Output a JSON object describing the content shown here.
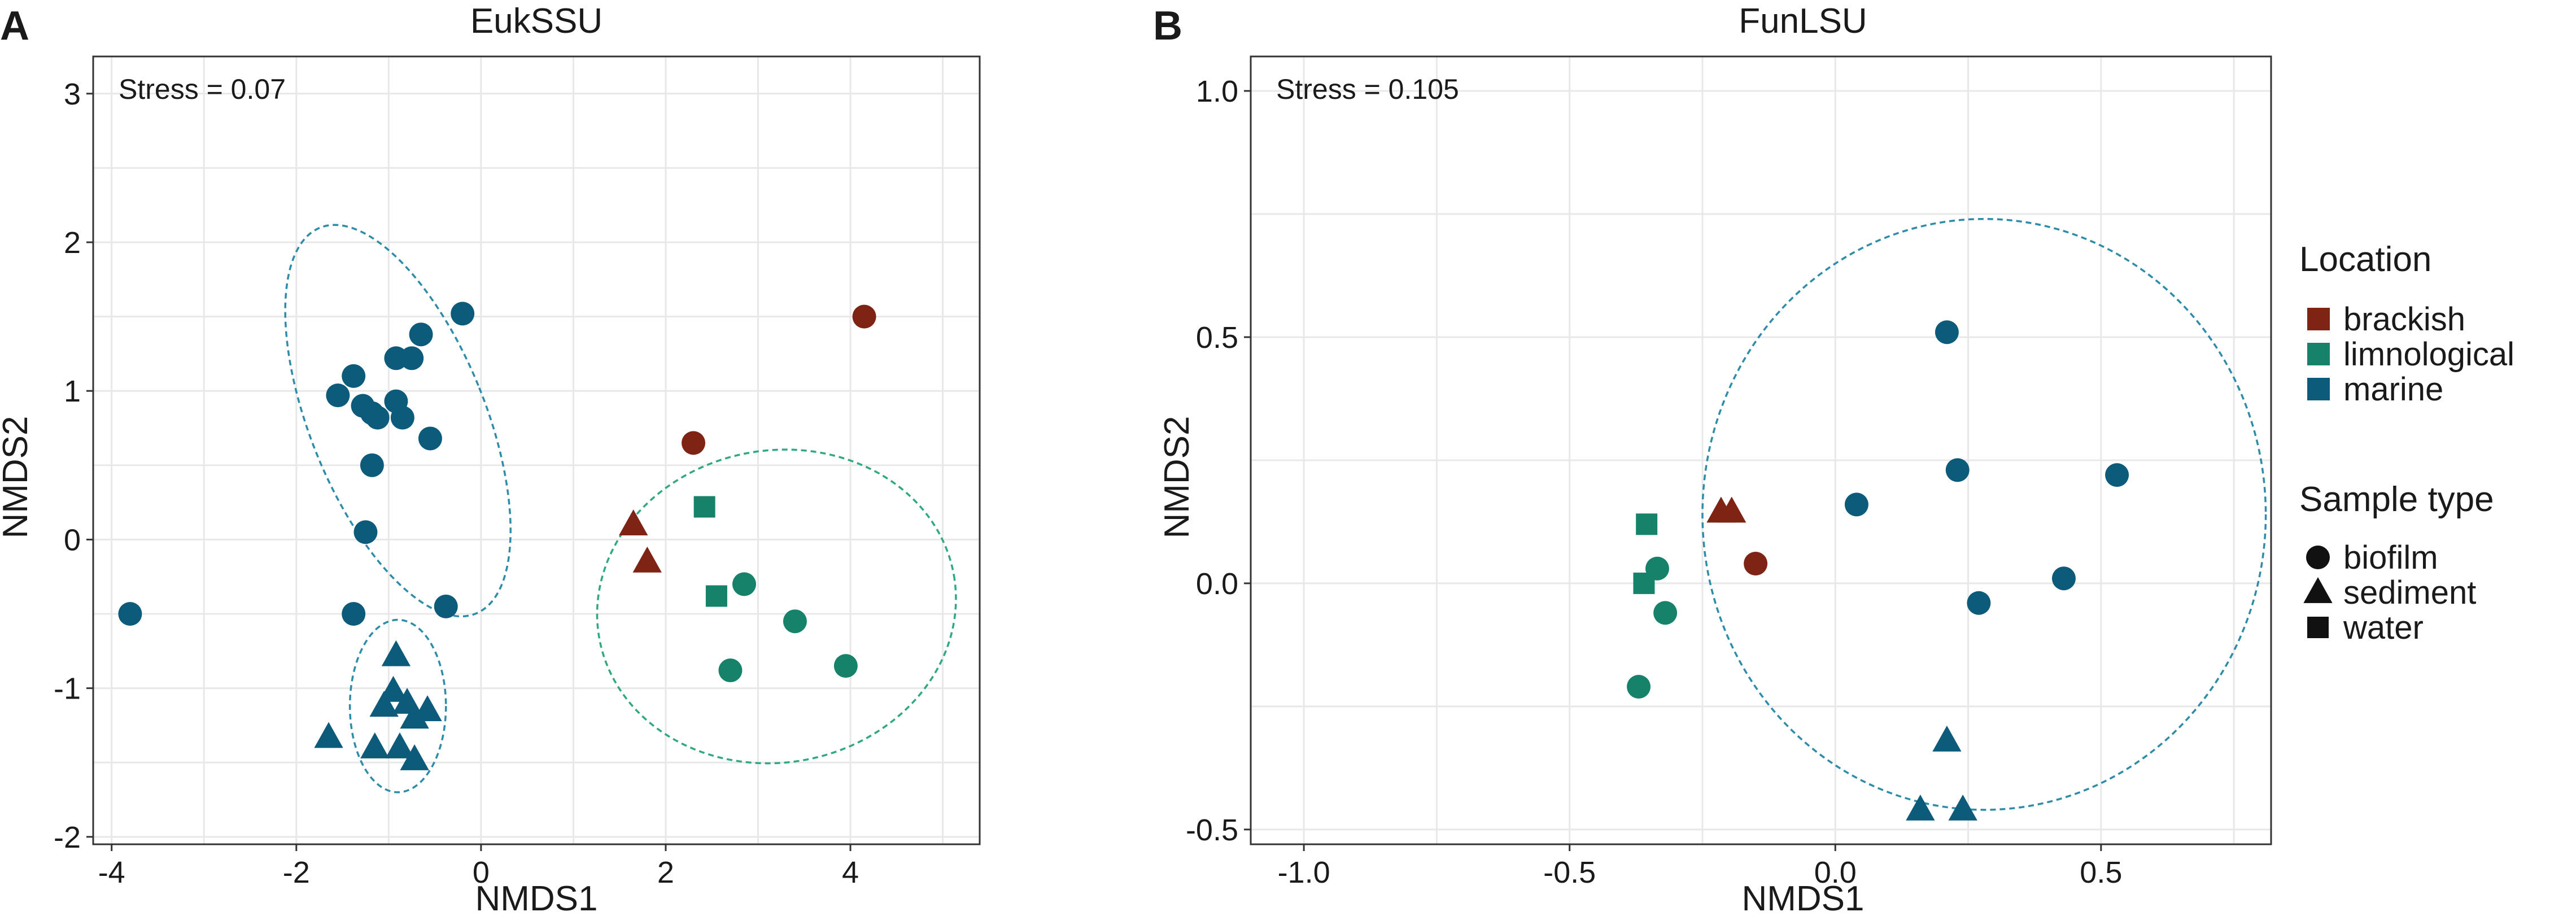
{
  "chart_data": [
    {
      "panel_label": "A",
      "type": "scatter",
      "title": "EukSSU",
      "xlabel": "NMDS1",
      "ylabel": "NMDS2",
      "stress_label": "Stress = 0.07",
      "xlim": [
        -4.2,
        5.4
      ],
      "ylim": [
        -2.05,
        3.25
      ],
      "x_ticks": [
        -4,
        -2,
        0,
        2,
        4
      ],
      "x_tick_labels": [
        "-4",
        "-2",
        "0",
        "2",
        "4"
      ],
      "y_ticks": [
        -2,
        -1,
        0,
        1,
        2,
        3
      ],
      "y_tick_labels": [
        "-2",
        "-1",
        "0",
        "1",
        "2",
        "3"
      ],
      "grid": true,
      "points": [
        {
          "x": -3.8,
          "y": -0.5,
          "location": "marine",
          "sample_type": "biofilm"
        },
        {
          "x": -1.55,
          "y": 0.97,
          "location": "marine",
          "sample_type": "biofilm"
        },
        {
          "x": -1.38,
          "y": 1.1,
          "location": "marine",
          "sample_type": "biofilm"
        },
        {
          "x": -1.28,
          "y": 0.9,
          "location": "marine",
          "sample_type": "biofilm"
        },
        {
          "x": -1.18,
          "y": 0.85,
          "location": "marine",
          "sample_type": "biofilm"
        },
        {
          "x": -1.12,
          "y": 0.82,
          "location": "marine",
          "sample_type": "biofilm"
        },
        {
          "x": -0.92,
          "y": 1.22,
          "location": "marine",
          "sample_type": "biofilm"
        },
        {
          "x": -0.92,
          "y": 0.93,
          "location": "marine",
          "sample_type": "biofilm"
        },
        {
          "x": -0.85,
          "y": 0.82,
          "location": "marine",
          "sample_type": "biofilm"
        },
        {
          "x": -0.75,
          "y": 1.22,
          "location": "marine",
          "sample_type": "biofilm"
        },
        {
          "x": -0.65,
          "y": 1.38,
          "location": "marine",
          "sample_type": "biofilm"
        },
        {
          "x": -0.55,
          "y": 0.68,
          "location": "marine",
          "sample_type": "biofilm"
        },
        {
          "x": -0.2,
          "y": 1.52,
          "location": "marine",
          "sample_type": "biofilm"
        },
        {
          "x": -1.18,
          "y": 0.5,
          "location": "marine",
          "sample_type": "biofilm"
        },
        {
          "x": -1.25,
          "y": 0.05,
          "location": "marine",
          "sample_type": "biofilm"
        },
        {
          "x": -1.38,
          "y": -0.5,
          "location": "marine",
          "sample_type": "biofilm"
        },
        {
          "x": -0.38,
          "y": -0.45,
          "location": "marine",
          "sample_type": "biofilm"
        },
        {
          "x": -0.92,
          "y": -0.78,
          "location": "marine",
          "sample_type": "sediment"
        },
        {
          "x": -0.95,
          "y": -1.02,
          "location": "marine",
          "sample_type": "sediment"
        },
        {
          "x": -1.05,
          "y": -1.12,
          "location": "marine",
          "sample_type": "sediment"
        },
        {
          "x": -0.8,
          "y": -1.1,
          "location": "marine",
          "sample_type": "sediment"
        },
        {
          "x": -0.72,
          "y": -1.2,
          "location": "marine",
          "sample_type": "sediment"
        },
        {
          "x": -0.58,
          "y": -1.15,
          "location": "marine",
          "sample_type": "sediment"
        },
        {
          "x": -1.65,
          "y": -1.33,
          "location": "marine",
          "sample_type": "sediment"
        },
        {
          "x": -1.15,
          "y": -1.4,
          "location": "marine",
          "sample_type": "sediment"
        },
        {
          "x": -0.88,
          "y": -1.4,
          "location": "marine",
          "sample_type": "sediment"
        },
        {
          "x": -0.72,
          "y": -1.48,
          "location": "marine",
          "sample_type": "sediment"
        },
        {
          "x": 4.15,
          "y": 1.5,
          "location": "brackish",
          "sample_type": "biofilm"
        },
        {
          "x": 2.3,
          "y": 0.65,
          "location": "brackish",
          "sample_type": "biofilm"
        },
        {
          "x": 1.65,
          "y": 0.1,
          "location": "brackish",
          "sample_type": "sediment"
        },
        {
          "x": 1.8,
          "y": -0.15,
          "location": "brackish",
          "sample_type": "sediment"
        },
        {
          "x": 2.42,
          "y": 0.22,
          "location": "limnological",
          "sample_type": "water"
        },
        {
          "x": 2.55,
          "y": -0.38,
          "location": "limnological",
          "sample_type": "water"
        },
        {
          "x": 2.85,
          "y": -0.3,
          "location": "limnological",
          "sample_type": "biofilm"
        },
        {
          "x": 3.4,
          "y": -0.55,
          "location": "limnological",
          "sample_type": "biofilm"
        },
        {
          "x": 2.7,
          "y": -0.88,
          "location": "limnological",
          "sample_type": "biofilm"
        },
        {
          "x": 3.95,
          "y": -0.85,
          "location": "limnological",
          "sample_type": "biofilm"
        }
      ],
      "ellipses": [
        {
          "group": "marine",
          "cx": -0.9,
          "cy": 0.8,
          "rx": 0.95,
          "ry": 1.4,
          "rotation_deg": -22
        },
        {
          "group": "marine",
          "cx": -0.9,
          "cy": -1.12,
          "rx": 0.52,
          "ry": 0.58,
          "rotation_deg": 0
        },
        {
          "group": "limnological",
          "cx": 3.2,
          "cy": -0.45,
          "rx": 1.95,
          "ry": 1.05,
          "rotation_deg": -10
        }
      ]
    },
    {
      "panel_label": "B",
      "type": "scatter",
      "title": "FunLSU",
      "xlabel": "NMDS1",
      "ylabel": "NMDS2",
      "stress_label": "Stress = 0.105",
      "xlim": [
        -1.1,
        0.82
      ],
      "ylim": [
        -0.53,
        1.07
      ],
      "x_ticks": [
        -1.0,
        -0.5,
        0.0,
        0.5
      ],
      "x_tick_labels": [
        "-1.0",
        "-0.5",
        "0.0",
        "0.5"
      ],
      "y_ticks": [
        -0.5,
        0.0,
        0.5,
        1.0
      ],
      "y_tick_labels": [
        "-0.5",
        "0.0",
        "0.5",
        "1.0"
      ],
      "grid": true,
      "points": [
        {
          "x": 0.21,
          "y": 0.51,
          "location": "marine",
          "sample_type": "biofilm"
        },
        {
          "x": 0.23,
          "y": 0.23,
          "location": "marine",
          "sample_type": "biofilm"
        },
        {
          "x": 0.53,
          "y": 0.22,
          "location": "marine",
          "sample_type": "biofilm"
        },
        {
          "x": 0.04,
          "y": 0.16,
          "location": "marine",
          "sample_type": "biofilm"
        },
        {
          "x": 0.43,
          "y": 0.01,
          "location": "marine",
          "sample_type": "biofilm"
        },
        {
          "x": 0.27,
          "y": -0.04,
          "location": "marine",
          "sample_type": "biofilm"
        },
        {
          "x": 0.21,
          "y": -0.32,
          "location": "marine",
          "sample_type": "sediment"
        },
        {
          "x": 0.16,
          "y": -0.46,
          "location": "marine",
          "sample_type": "sediment"
        },
        {
          "x": 0.24,
          "y": -0.46,
          "location": "marine",
          "sample_type": "sediment"
        },
        {
          "x": -0.215,
          "y": 0.145,
          "location": "brackish",
          "sample_type": "sediment"
        },
        {
          "x": -0.195,
          "y": 0.145,
          "location": "brackish",
          "sample_type": "sediment"
        },
        {
          "x": -0.15,
          "y": 0.04,
          "location": "brackish",
          "sample_type": "biofilm"
        },
        {
          "x": -0.355,
          "y": 0.12,
          "location": "limnological",
          "sample_type": "water"
        },
        {
          "x": -0.36,
          "y": 0.0,
          "location": "limnological",
          "sample_type": "water"
        },
        {
          "x": -0.335,
          "y": 0.03,
          "location": "limnological",
          "sample_type": "biofilm"
        },
        {
          "x": -0.32,
          "y": -0.06,
          "location": "limnological",
          "sample_type": "biofilm"
        },
        {
          "x": -0.37,
          "y": -0.21,
          "location": "limnological",
          "sample_type": "biofilm"
        }
      ],
      "ellipses": [
        {
          "group": "marine",
          "cx": 0.28,
          "cy": 0.14,
          "rx": 0.53,
          "ry": 0.6,
          "rotation_deg": 0
        }
      ]
    }
  ],
  "legend": {
    "location_title": "Location",
    "locations": [
      {
        "label": "brackish",
        "color": "#7f2415"
      },
      {
        "label": "limnological",
        "color": "#16826a"
      },
      {
        "label": "marine",
        "color": "#0d5b7a"
      }
    ],
    "sample_type_title": "Sample type",
    "sample_types": [
      {
        "label": "biofilm",
        "shape": "circle"
      },
      {
        "label": "sediment",
        "shape": "triangle"
      },
      {
        "label": "water",
        "shape": "square"
      }
    ]
  },
  "colors": {
    "brackish": "#7f2415",
    "limnological": "#16826a",
    "marine": "#0d5b7a",
    "ellipse_marine": "#2d8ca8",
    "ellipse_limnological": "#2fa884",
    "grid": "#e8e8e8",
    "axis": "#333333"
  }
}
